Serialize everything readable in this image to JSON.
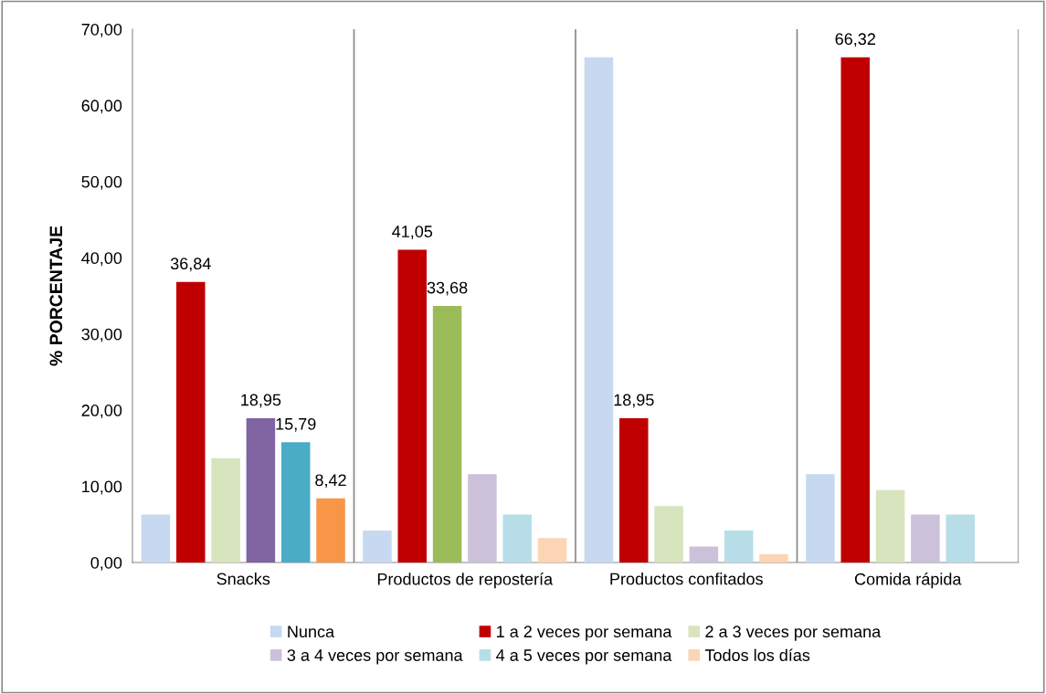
{
  "chart_data": {
    "type": "bar",
    "ylabel": "% PORCENTAJE",
    "categories": [
      "Snacks",
      "Productos de repostería",
      "Productos confitados",
      "Comida rápida"
    ],
    "series": [
      {
        "name": "Nunca",
        "color": "#c6d9f1",
        "values": [
          6.3,
          4.2,
          66.3,
          11.6
        ]
      },
      {
        "name": "1 a 2 veces por semana",
        "color": "#c00000",
        "values": [
          36.84,
          41.05,
          18.95,
          66.32
        ],
        "value_labels": [
          "36,84",
          "41,05",
          "18,95",
          "66,32"
        ]
      },
      {
        "name": "2 a 3 veces por semana",
        "color": "#d7e4bd",
        "colors": [
          "#d7e4bd",
          "#9bbb59",
          "#d7e4bd",
          "#d7e4bd"
        ],
        "values": [
          13.7,
          33.68,
          7.4,
          9.5
        ],
        "value_labels": [
          null,
          "33,68",
          null,
          null
        ]
      },
      {
        "name": "3 a 4 veces por semana",
        "color": "#ccc1da",
        "colors": [
          "#8064a2",
          "#ccc1da",
          "#ccc1da",
          "#ccc1da"
        ],
        "values": [
          18.95,
          11.6,
          2.1,
          6.3
        ],
        "value_labels": [
          "18,95",
          null,
          null,
          null
        ]
      },
      {
        "name": "4 a 5 veces por semana",
        "color": "#b7dee8",
        "colors": [
          "#4bacc6",
          "#b7dee8",
          "#b7dee8",
          "#b7dee8"
        ],
        "values": [
          15.79,
          6.3,
          4.2,
          6.3
        ],
        "value_labels": [
          "15,79",
          null,
          null,
          null
        ]
      },
      {
        "name": "Todos los días",
        "color": "#fcd5b5",
        "colors": [
          "#f79646",
          "#fcd5b5",
          "#fcd5b5",
          "#fcd5b5"
        ],
        "values": [
          8.42,
          3.2,
          1.1,
          null
        ],
        "value_labels": [
          "8,42",
          null,
          null,
          null
        ]
      }
    ],
    "ylim": [
      0,
      70
    ],
    "yticks": [
      {
        "value": 0,
        "label": "0,00"
      },
      {
        "value": 10,
        "label": "10,00"
      },
      {
        "value": 20,
        "label": "20,00"
      },
      {
        "value": 30,
        "label": "30,00"
      },
      {
        "value": 40,
        "label": "40,00"
      },
      {
        "value": 50,
        "label": "50,00"
      },
      {
        "value": 60,
        "label": "60,00"
      },
      {
        "value": 70,
        "label": "70,00"
      }
    ],
    "grid": "x",
    "legend": "bottom"
  }
}
